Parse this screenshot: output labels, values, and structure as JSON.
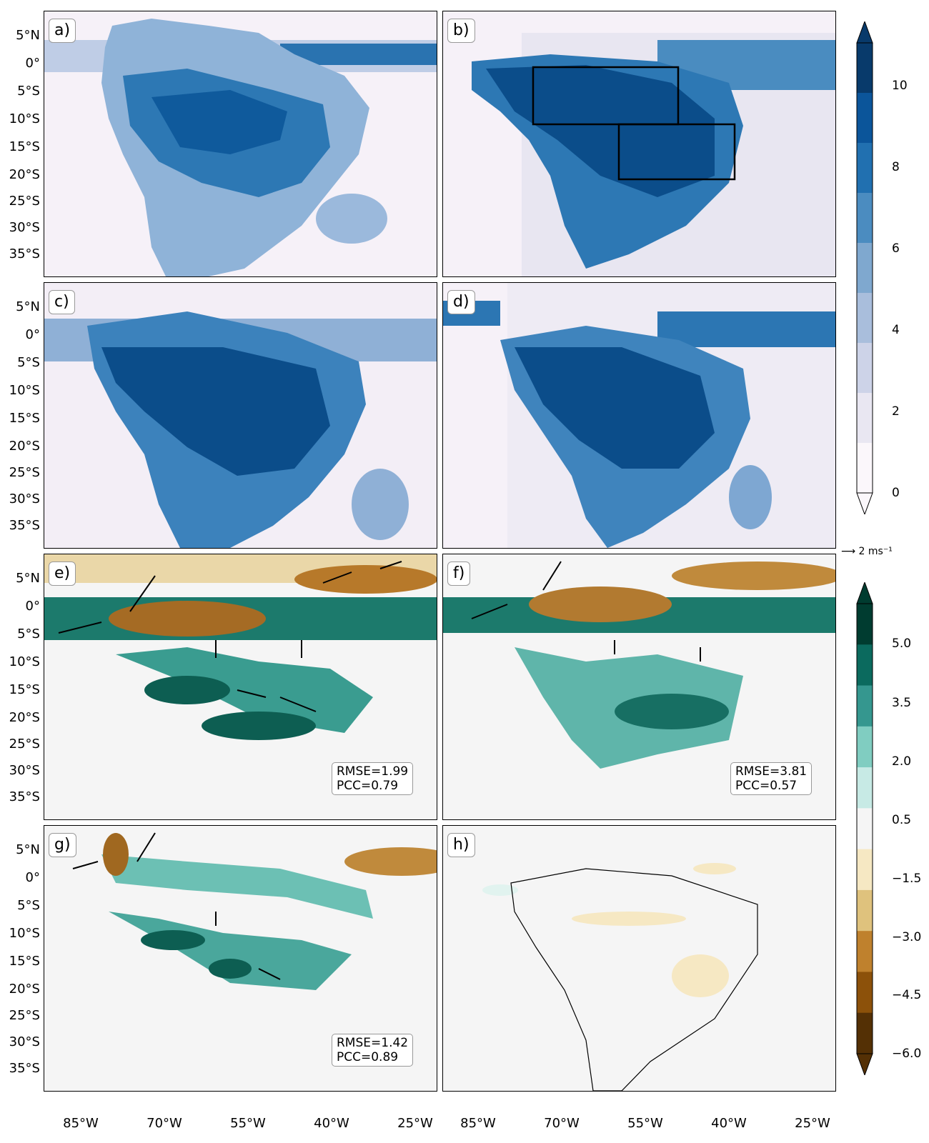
{
  "lat_labels": [
    "5°N",
    "0°",
    "5°S",
    "10°S",
    "15°S",
    "20°S",
    "25°S",
    "30°S",
    "35°S"
  ],
  "lon_labels": [
    "85°W",
    "70°W",
    "55°W",
    "40°W",
    "25°W"
  ],
  "panels": [
    {
      "label": "a)"
    },
    {
      "label": "b)"
    },
    {
      "label": "c)"
    },
    {
      "label": "d)"
    },
    {
      "label": "e)",
      "rmse": "RMSE=1.99",
      "pcc": "PCC=0.79"
    },
    {
      "label": "f)",
      "rmse": "RMSE=3.81",
      "pcc": "PCC=0.57"
    },
    {
      "label": "g)",
      "rmse": "RMSE=1.42",
      "pcc": "PCC=0.89"
    },
    {
      "label": "h)"
    }
  ],
  "colorbar_top": {
    "ticks": [
      "10",
      "8",
      "6",
      "4",
      "2",
      "0"
    ],
    "colors": [
      "#fbf7fb",
      "#e9e7f2",
      "#cdd3e8",
      "#a9bedc",
      "#7fa8cf",
      "#4b8cc0",
      "#2170b0",
      "#0b559a",
      "#083a6b"
    ]
  },
  "vector_reference": "2 ms⁻¹",
  "colorbar_bottom": {
    "ticks": [
      "5.0",
      "3.5",
      "2.0",
      "0.5",
      "−1.5",
      "−3.0",
      "−4.5",
      "−6.0"
    ],
    "colors": [
      "#003c30",
      "#0b6a5e",
      "#35978f",
      "#80cdc1",
      "#c7eae5",
      "#f5f5f5",
      "#f6e8c3",
      "#dfc27d",
      "#bf812d",
      "#8c510a",
      "#543005"
    ]
  }
}
